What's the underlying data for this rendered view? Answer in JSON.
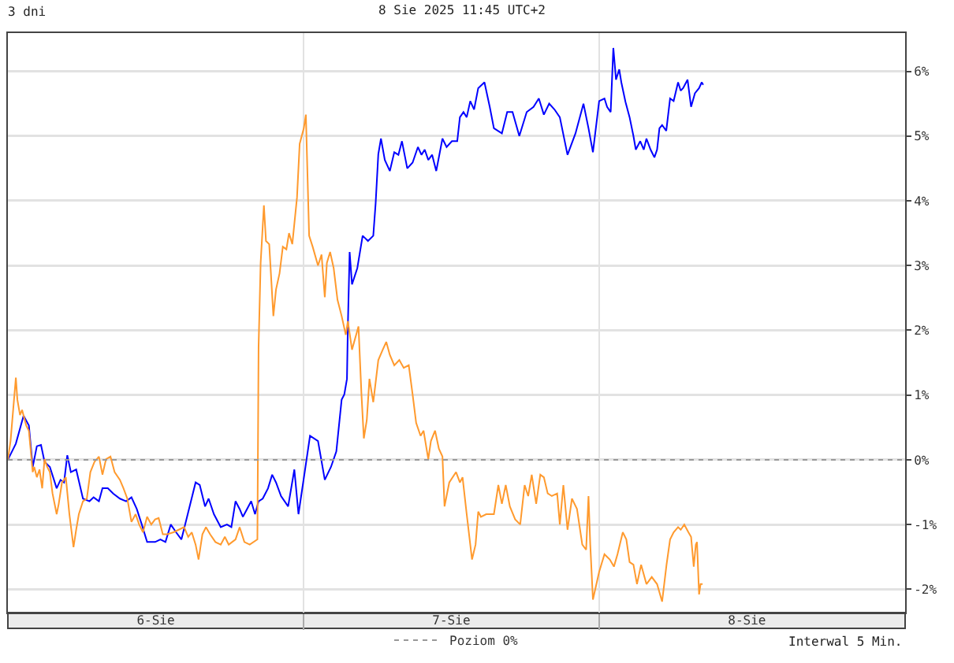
{
  "chart_data": {
    "type": "line",
    "title": "3 dni",
    "subtitle": "8 Sie 2025 11:45 UTC+2",
    "annotations": [
      "Interwal 5 Min."
    ],
    "xlim": [
      5.5,
      8.535
    ],
    "xticks": [
      {
        "value": 6,
        "label": "6-Sie"
      },
      {
        "value": 6.5,
        "label": null
      },
      {
        "value": 7,
        "label": "7-Sie"
      },
      {
        "value": 7.5,
        "label": null
      },
      {
        "value": 8,
        "label": "8-Sie"
      }
    ],
    "ylim": [
      -2.36,
      6.59
    ],
    "yticks": [
      {
        "value": -2,
        "label": "-2%"
      },
      {
        "value": -1,
        "label": "-1%"
      },
      {
        "value": 0,
        "label": "0%"
      },
      {
        "value": 1,
        "label": "1%"
      },
      {
        "value": 2,
        "label": "2%"
      },
      {
        "value": 3,
        "label": "3%"
      },
      {
        "value": 4,
        "label": "4%"
      },
      {
        "value": 5,
        "label": "5%"
      },
      {
        "value": 6,
        "label": "6%"
      }
    ],
    "grid": true,
    "legend": "bottom",
    "ref_lines": [
      {
        "axis": "y",
        "value": 0,
        "label": "Poziom 0%",
        "color": "#999999",
        "line_style": "dotted"
      }
    ],
    "series": [
      {
        "color": "#0000ff",
        "x": [
          5.5,
          5.527,
          5.553,
          5.571,
          5.584,
          5.598,
          5.612,
          5.624,
          5.642,
          5.665,
          5.678,
          5.69,
          5.701,
          5.713,
          5.731,
          5.754,
          5.776,
          5.79,
          5.808,
          5.82,
          5.838,
          5.856,
          5.879,
          5.9,
          5.918,
          5.936,
          5.953,
          5.971,
          5.998,
          6.016,
          6.033,
          6.051,
          6.069,
          6.087,
          6.104,
          6.135,
          6.149,
          6.167,
          6.179,
          6.197,
          6.22,
          6.241,
          6.256,
          6.27,
          6.284,
          6.295,
          6.309,
          6.323,
          6.336,
          6.348,
          6.362,
          6.38,
          6.394,
          6.407,
          6.424,
          6.448,
          6.469,
          6.483,
          6.504,
          6.522,
          6.549,
          6.572,
          6.593,
          6.611,
          6.629,
          6.638,
          6.647,
          6.65,
          6.656,
          6.664,
          6.682,
          6.7,
          6.718,
          6.736,
          6.744,
          6.753,
          6.762,
          6.775,
          6.792,
          6.807,
          6.821,
          6.833,
          6.851,
          6.869,
          6.887,
          6.899,
          6.91,
          6.922,
          6.935,
          6.949,
          6.97,
          6.984,
          7.002,
          7.02,
          7.029,
          7.041,
          7.052,
          7.064,
          7.077,
          7.091,
          7.112,
          7.13,
          7.144,
          7.171,
          7.189,
          7.207,
          7.23,
          7.255,
          7.278,
          7.296,
          7.313,
          7.331,
          7.349,
          7.367,
          7.393,
          7.42,
          7.447,
          7.464,
          7.479,
          7.5,
          7.518,
          7.527,
          7.539,
          7.548,
          7.557,
          7.568,
          7.575,
          7.589,
          7.603,
          7.616,
          7.624,
          7.639,
          7.651,
          7.66,
          7.674,
          7.687,
          7.696,
          7.704,
          7.713,
          7.727,
          7.74,
          7.752,
          7.767,
          7.776,
          7.784,
          7.799,
          7.811,
          7.824,
          7.838,
          7.847,
          7.852
        ],
        "values": [
          0,
          0.25,
          0.68,
          0.53,
          -0.11,
          0.21,
          0.23,
          -0.03,
          -0.11,
          -0.44,
          -0.31,
          -0.35,
          0.07,
          -0.19,
          -0.15,
          -0.6,
          -0.64,
          -0.58,
          -0.64,
          -0.44,
          -0.44,
          -0.52,
          -0.6,
          -0.64,
          -0.58,
          -0.76,
          -1.0,
          -1.27,
          -1.27,
          -1.23,
          -1.27,
          -1.0,
          -1.12,
          -1.23,
          -0.92,
          -0.35,
          -0.39,
          -0.72,
          -0.6,
          -0.84,
          -1.04,
          -1.0,
          -1.04,
          -0.64,
          -0.76,
          -0.88,
          -0.76,
          -0.64,
          -0.84,
          -0.64,
          -0.6,
          -0.44,
          -0.23,
          -0.35,
          -0.56,
          -0.72,
          -0.15,
          -0.84,
          -0.19,
          0.37,
          0.29,
          -0.31,
          -0.11,
          0.13,
          0.93,
          1.01,
          1.25,
          2.06,
          3.21,
          2.71,
          2.96,
          3.46,
          3.38,
          3.46,
          3.96,
          4.72,
          4.96,
          4.63,
          4.46,
          4.75,
          4.71,
          4.92,
          4.5,
          4.59,
          4.83,
          4.71,
          4.79,
          4.63,
          4.71,
          4.46,
          4.96,
          4.83,
          4.92,
          4.92,
          5.29,
          5.37,
          5.29,
          5.54,
          5.41,
          5.74,
          5.83,
          5.45,
          5.12,
          5.04,
          5.37,
          5.37,
          5.0,
          5.37,
          5.45,
          5.58,
          5.33,
          5.5,
          5.41,
          5.29,
          4.71,
          5.04,
          5.5,
          5.12,
          4.75,
          5.54,
          5.58,
          5.45,
          5.37,
          6.36,
          5.87,
          6.03,
          5.83,
          5.53,
          5.29,
          5.0,
          4.79,
          4.92,
          4.79,
          4.96,
          4.79,
          4.67,
          4.79,
          5.12,
          5.17,
          5.08,
          5.58,
          5.54,
          5.83,
          5.7,
          5.74,
          5.87,
          5.45,
          5.66,
          5.74,
          5.83,
          5.79
        ]
      },
      {
        "color": "#ff9a2e",
        "x": [
          5.5,
          5.509,
          5.527,
          5.532,
          5.541,
          5.548,
          5.562,
          5.571,
          5.584,
          5.589,
          5.598,
          5.607,
          5.616,
          5.624,
          5.633,
          5.642,
          5.651,
          5.665,
          5.672,
          5.683,
          5.696,
          5.708,
          5.722,
          5.731,
          5.74,
          5.754,
          5.767,
          5.779,
          5.793,
          5.808,
          5.82,
          5.832,
          5.847,
          5.861,
          5.879,
          5.891,
          5.904,
          5.918,
          5.932,
          5.944,
          5.957,
          5.971,
          5.985,
          5.998,
          6.01,
          6.024,
          6.039,
          6.06,
          6.078,
          6.096,
          6.11,
          6.122,
          6.135,
          6.145,
          6.158,
          6.17,
          6.184,
          6.202,
          6.22,
          6.234,
          6.247,
          6.27,
          6.284,
          6.3,
          6.318,
          6.344,
          6.348,
          6.355,
          6.366,
          6.373,
          6.384,
          6.398,
          6.407,
          6.419,
          6.43,
          6.442,
          6.451,
          6.462,
          6.478,
          6.487,
          6.501,
          6.508,
          6.519,
          6.531,
          6.549,
          6.561,
          6.572,
          6.579,
          6.59,
          6.602,
          6.615,
          6.629,
          6.643,
          6.65,
          6.664,
          6.686,
          6.696,
          6.704,
          6.714,
          6.723,
          6.736,
          6.753,
          6.768,
          6.78,
          6.792,
          6.807,
          6.824,
          6.839,
          6.856,
          6.869,
          6.881,
          6.896,
          6.906,
          6.922,
          6.931,
          6.945,
          6.958,
          6.97,
          6.977,
          6.993,
          7.016,
          7.029,
          7.038,
          7.052,
          7.07,
          7.082,
          7.091,
          7.1,
          7.118,
          7.144,
          7.159,
          7.171,
          7.184,
          7.198,
          7.216,
          7.233,
          7.248,
          7.26,
          7.272,
          7.287,
          7.301,
          7.313,
          7.326,
          7.34,
          7.358,
          7.367,
          7.379,
          7.393,
          7.408,
          7.425,
          7.443,
          7.456,
          7.464,
          7.47,
          7.479,
          7.5,
          7.518,
          7.536,
          7.55,
          7.562,
          7.58,
          7.592,
          7.603,
          7.616,
          7.628,
          7.642,
          7.66,
          7.678,
          7.696,
          7.713,
          7.728,
          7.74,
          7.752,
          7.767,
          7.776,
          7.788,
          7.802,
          7.811,
          7.82,
          7.827,
          7.831,
          7.838,
          7.843,
          7.85
        ],
        "values": [
          0,
          0.29,
          1.27,
          0.93,
          0.69,
          0.77,
          0.53,
          0.45,
          -0.19,
          -0.11,
          -0.27,
          -0.15,
          -0.44,
          0.01,
          -0.11,
          -0.19,
          -0.52,
          -0.84,
          -0.68,
          -0.35,
          -0.27,
          -0.84,
          -1.35,
          -1.08,
          -0.84,
          -0.64,
          -0.6,
          -0.19,
          -0.03,
          0.05,
          -0.23,
          0.01,
          0.05,
          -0.19,
          -0.31,
          -0.44,
          -0.6,
          -0.96,
          -0.84,
          -1.0,
          -1.12,
          -0.88,
          -1.0,
          -0.92,
          -0.9,
          -1.15,
          -1.15,
          -1.12,
          -1.08,
          -1.04,
          -1.19,
          -1.12,
          -1.31,
          -1.54,
          -1.15,
          -1.04,
          -1.15,
          -1.27,
          -1.31,
          -1.19,
          -1.31,
          -1.23,
          -1.04,
          -1.27,
          -1.31,
          -1.23,
          1.74,
          3.04,
          3.93,
          3.38,
          3.33,
          2.22,
          2.63,
          2.88,
          3.29,
          3.25,
          3.5,
          3.33,
          4.05,
          4.88,
          5.12,
          5.33,
          3.46,
          3.29,
          3.0,
          3.17,
          2.51,
          3.04,
          3.21,
          2.96,
          2.47,
          2.22,
          1.93,
          2.14,
          1.7,
          2.06,
          1.01,
          0.33,
          0.61,
          1.25,
          0.89,
          1.54,
          1.7,
          1.82,
          1.62,
          1.46,
          1.54,
          1.42,
          1.46,
          1.01,
          0.57,
          0.37,
          0.45,
          0.01,
          0.29,
          0.45,
          0.17,
          0.05,
          -0.72,
          -0.35,
          -0.19,
          -0.35,
          -0.27,
          -0.84,
          -1.54,
          -1.31,
          -0.8,
          -0.88,
          -0.84,
          -0.84,
          -0.39,
          -0.68,
          -0.39,
          -0.72,
          -0.92,
          -1.0,
          -0.39,
          -0.56,
          -0.23,
          -0.68,
          -0.23,
          -0.27,
          -0.52,
          -0.56,
          -0.52,
          -1.0,
          -0.39,
          -1.08,
          -0.6,
          -0.76,
          -1.31,
          -1.39,
          -0.56,
          -1.31,
          -2.16,
          -1.73,
          -1.46,
          -1.54,
          -1.65,
          -1.46,
          -1.12,
          -1.23,
          -1.58,
          -1.62,
          -1.92,
          -1.62,
          -1.92,
          -1.81,
          -1.92,
          -2.19,
          -1.62,
          -1.23,
          -1.12,
          -1.04,
          -1.08,
          -1.0,
          -1.12,
          -1.19,
          -1.65,
          -1.31,
          -1.27,
          -2.08,
          -1.92,
          -1.92
        ]
      }
    ]
  }
}
